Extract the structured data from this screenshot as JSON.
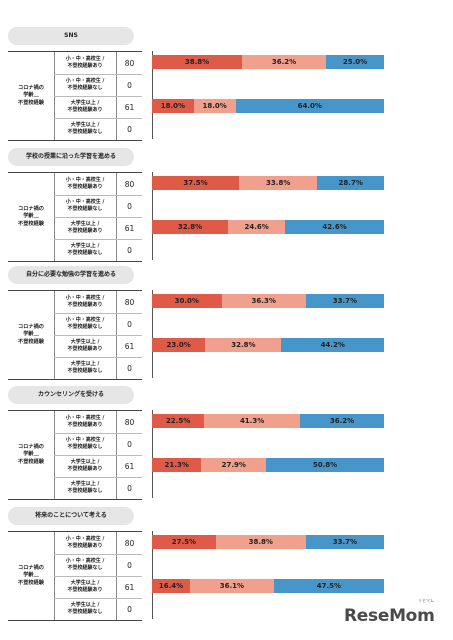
{
  "colors": {
    "series1": "#e05a48",
    "series2": "#f0a08c",
    "series3": "#4796c9"
  },
  "group_label": "コロナ禍の\n学齢＿\n不登校経験",
  "row_labels": [
    "小・中・高校生 /\n不登校経験あり",
    "小・中・高校生 /\n不登校経験なし",
    "大学生以上 /\n不登校経験あり",
    "大学生以上 /\n不登校経験なし"
  ],
  "row_labels_alt": [
    "小・中・高校生 /\n不登校経験あり",
    "小・中・高校生 /\n不登校経験なし",
    "大学生以上 /\n不登校経験あり",
    "大学生以上 /\n不登校経験なし"
  ],
  "chart_data": [
    {
      "type": "bar",
      "title": "SNS",
      "counts": [
        "80",
        "0",
        "61",
        "0"
      ],
      "rows": [
        [
          38.8,
          36.2,
          25.0
        ],
        null,
        [
          18.0,
          18.0,
          64.0
        ],
        null
      ]
    },
    {
      "type": "bar",
      "title": "学校の授業に沿った学習を進める",
      "counts": [
        "80",
        "0",
        "61",
        "0"
      ],
      "rows": [
        [
          37.5,
          33.8,
          28.7
        ],
        null,
        [
          32.8,
          24.6,
          42.6
        ],
        null
      ]
    },
    {
      "type": "bar",
      "title": "自分に必要な勉強の学習を進める",
      "counts": [
        "80",
        "0",
        "61",
        "0"
      ],
      "rows": [
        [
          30.0,
          36.3,
          33.7
        ],
        null,
        [
          23.0,
          32.8,
          44.2
        ],
        null
      ]
    },
    {
      "type": "bar",
      "title": "カウンセリングを受ける",
      "counts": [
        "80",
        "0",
        "61",
        "0"
      ],
      "rows": [
        [
          22.5,
          41.3,
          36.2
        ],
        null,
        [
          21.3,
          27.9,
          50.8
        ],
        null
      ]
    },
    {
      "type": "bar",
      "title": "将来のことについて考える",
      "counts": [
        "80",
        "0",
        "61",
        "0"
      ],
      "rows": [
        [
          27.5,
          38.8,
          33.7
        ],
        null,
        [
          16.4,
          36.1,
          47.5
        ],
        null
      ]
    }
  ],
  "logo": {
    "text": "ReseMom",
    "ruby": "リセマム"
  }
}
